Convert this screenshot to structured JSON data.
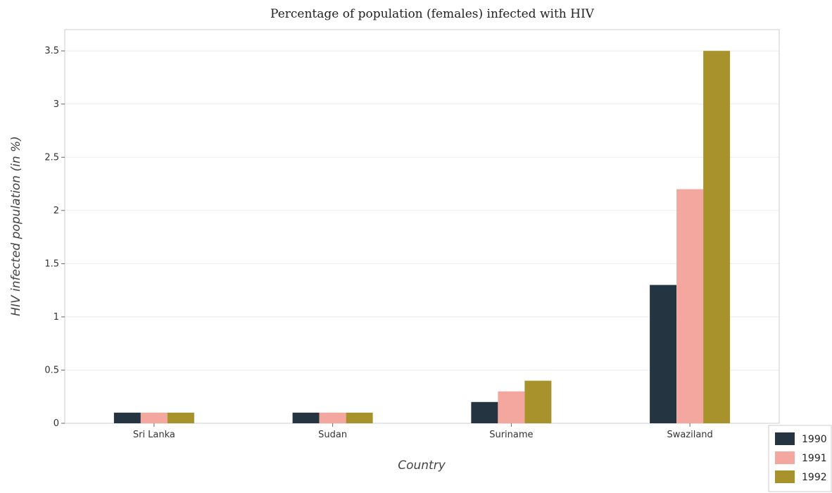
{
  "chart_data": {
    "type": "bar",
    "title": "Percentage of population (females) infected with HIV",
    "xlabel": "Country",
    "ylabel": "HIV infected population (in %)",
    "categories": [
      "Sri Lanka",
      "Sudan",
      "Suriname",
      "Swaziland"
    ],
    "series": [
      {
        "name": "1990",
        "color": "#253441",
        "values": [
          0.1,
          0.1,
          0.2,
          1.3
        ]
      },
      {
        "name": "1991",
        "color": "#f4a79e",
        "values": [
          0.1,
          0.1,
          0.3,
          2.2
        ]
      },
      {
        "name": "1992",
        "color": "#a8922c",
        "values": [
          0.1,
          0.1,
          0.4,
          3.5
        ]
      }
    ],
    "ylim": [
      0,
      3.7
    ],
    "yticks": [
      0,
      0.5,
      1,
      1.5,
      2,
      2.5,
      3,
      3.5
    ],
    "ytick_labels": [
      "0",
      "0.5",
      "1",
      "1.5",
      "2",
      "2.5",
      "3",
      "3.5"
    ],
    "grid": true,
    "legend_position": "bottom-right"
  }
}
